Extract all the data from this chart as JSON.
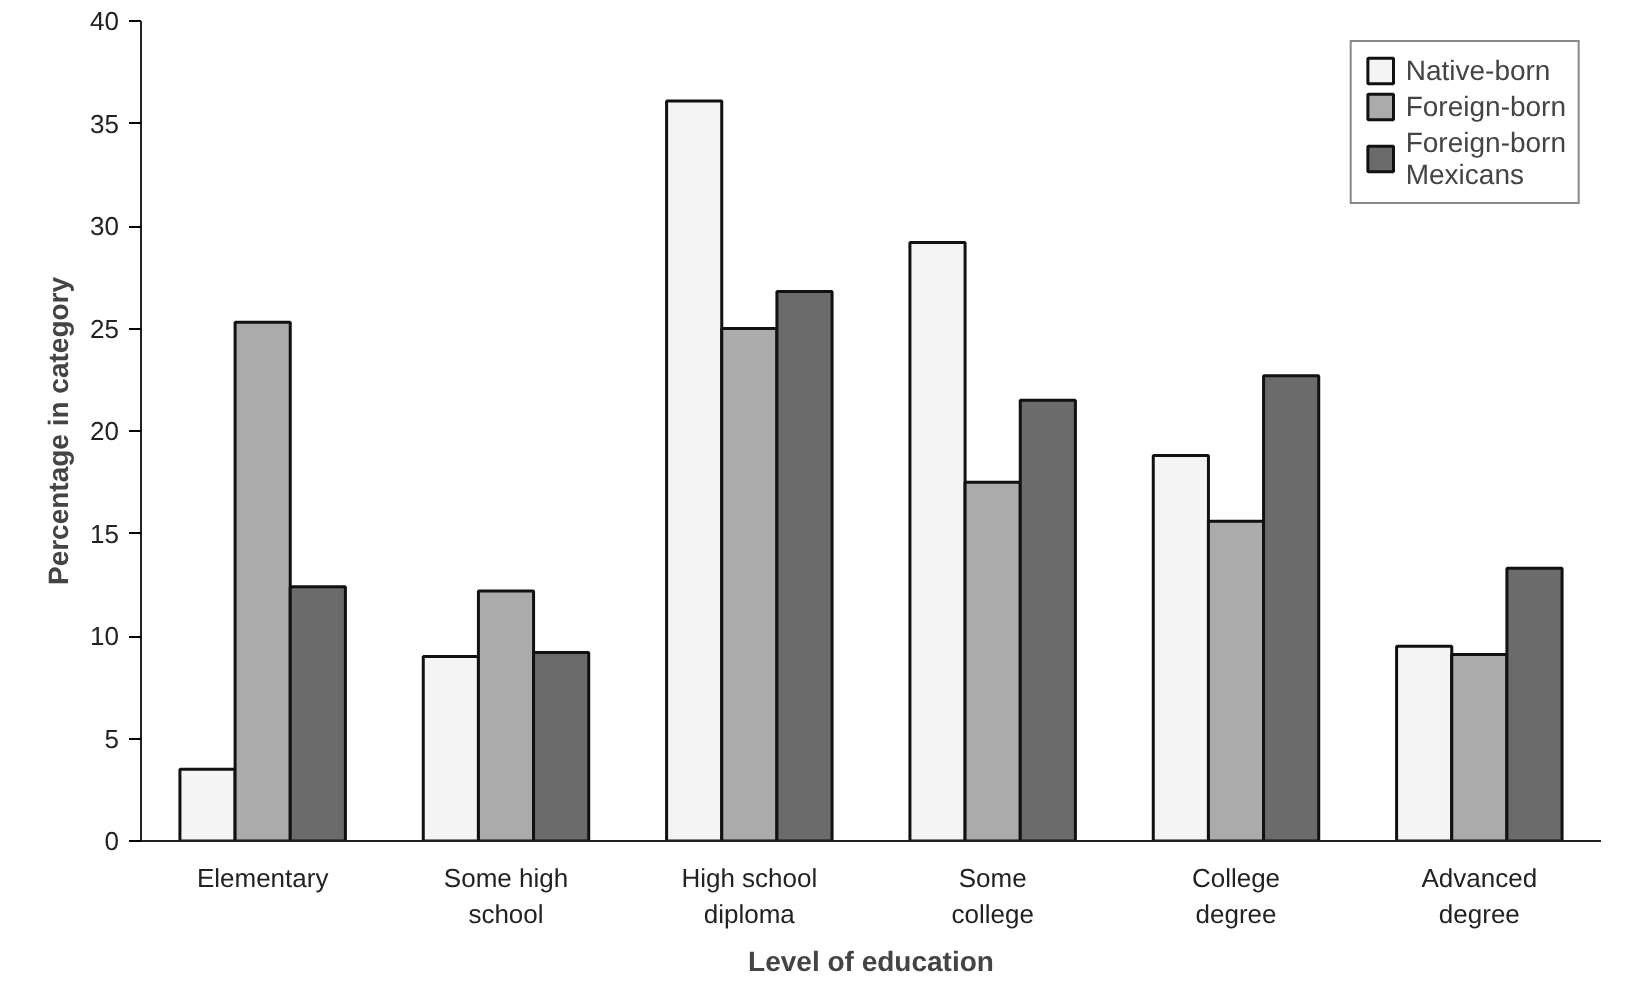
{
  "chart_data": {
    "type": "bar",
    "xlabel": "Level of education",
    "ylabel": "Percentage in category",
    "categories": [
      "Elementary",
      "Some high school",
      "High school diploma",
      "Some college",
      "College degree",
      "Advanced degree"
    ],
    "series": [
      {
        "name": "Native-born",
        "color": "#f4f4f4",
        "values": [
          3.5,
          9.0,
          36.1,
          29.2,
          18.8,
          9.5
        ]
      },
      {
        "name": "Foreign-born",
        "color": "#ababab",
        "values": [
          25.3,
          12.2,
          25.0,
          17.5,
          15.6,
          9.1
        ]
      },
      {
        "name": "Foreign-born Mexicans",
        "color": "#6b6b6b",
        "values": [
          12.4,
          9.2,
          26.8,
          21.5,
          22.7,
          13.3
        ]
      }
    ],
    "ylim": [
      0,
      40
    ],
    "yticks": [
      0,
      5,
      10,
      15,
      20,
      25,
      30,
      35,
      40
    ],
    "grid": false,
    "legend": "top right"
  }
}
